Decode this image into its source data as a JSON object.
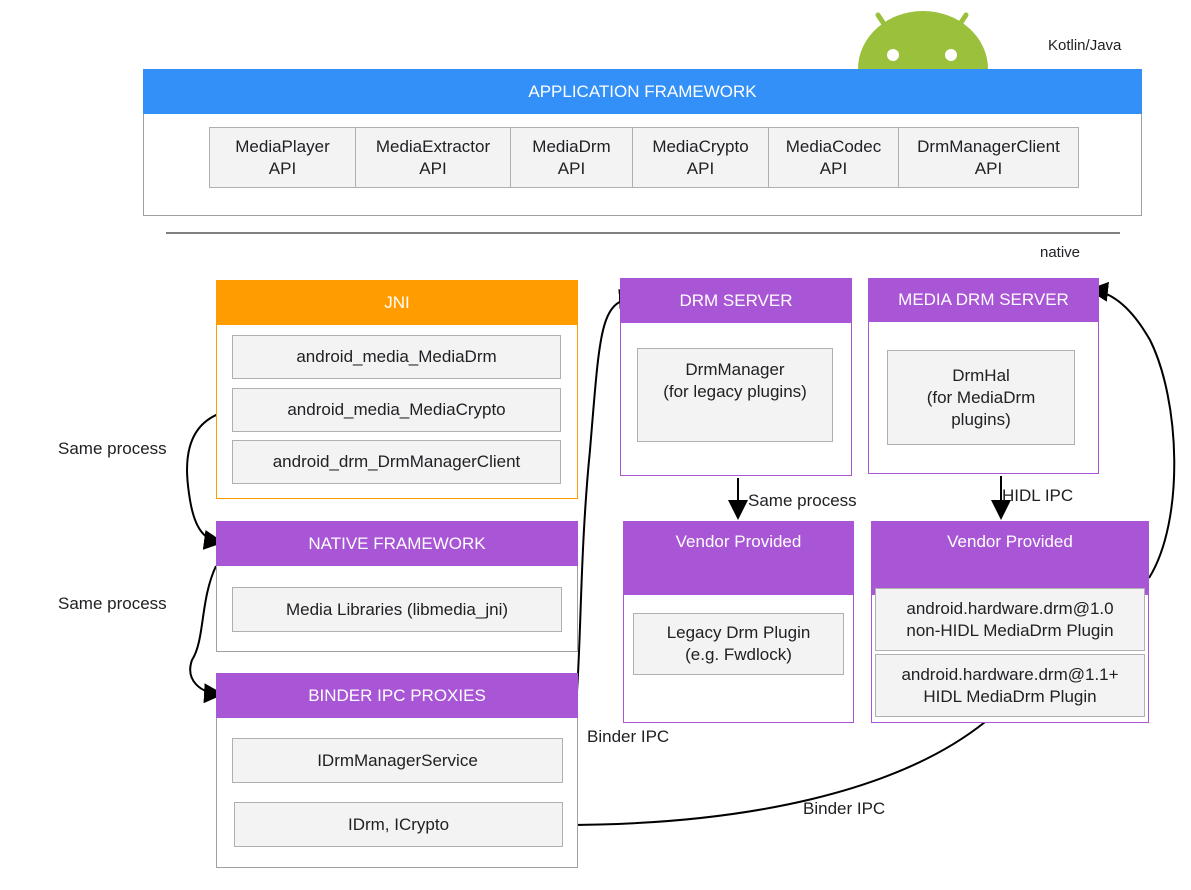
{
  "colors": {
    "blue": "#3290f8",
    "purple": "#a855d6",
    "orange": "#ff9c00",
    "android_green": "#9bc13c"
  },
  "layer_labels": {
    "top": "Kotlin/Java",
    "bottom": "native"
  },
  "app_framework": {
    "title": "APPLICATION FRAMEWORK",
    "apis": [
      "MediaPlayer\nAPI",
      "MediaExtractor\nAPI",
      "MediaDrm\nAPI",
      "MediaCrypto\nAPI",
      "MediaCodec\nAPI",
      "DrmManagerClient\nAPI"
    ]
  },
  "jni": {
    "title": "JNI",
    "items": [
      "android_media_MediaDrm",
      "android_media_MediaCrypto",
      "android_drm_DrmManagerClient"
    ]
  },
  "native_framework": {
    "title": "NATIVE FRAMEWORK",
    "items": [
      "Media Libraries (libmedia_jni)"
    ]
  },
  "binder_proxies": {
    "title": "BINDER IPC PROXIES",
    "items": [
      "IDrmManagerService",
      "IDrm, ICrypto"
    ]
  },
  "drm_server": {
    "title": "DRM SERVER",
    "items": [
      "DrmManager\n(for legacy plugins)"
    ]
  },
  "media_drm_server": {
    "title": "MEDIA DRM SERVER",
    "items": [
      "DrmHal\n(for MediaDrm\nplugins)"
    ]
  },
  "vendor_legacy": {
    "title": "Vendor Provided",
    "items": [
      "Legacy Drm Plugin\n(e.g. Fwdlock)"
    ]
  },
  "vendor_hal": {
    "title": "Vendor Provided",
    "items": [
      "android.hardware.drm@1.0\nnon-HIDL MediaDrm Plugin",
      "android.hardware.drm@1.1+\nHIDL MediaDrm Plugin"
    ]
  },
  "edge_labels": {
    "jni_to_native": "Same process",
    "native_to_binder": "Same process",
    "drm_to_vendor": "Same process",
    "hal_to_vendor": "HIDL IPC",
    "binder_to_drm": "Binder IPC",
    "binder_to_hal": "Binder IPC"
  }
}
